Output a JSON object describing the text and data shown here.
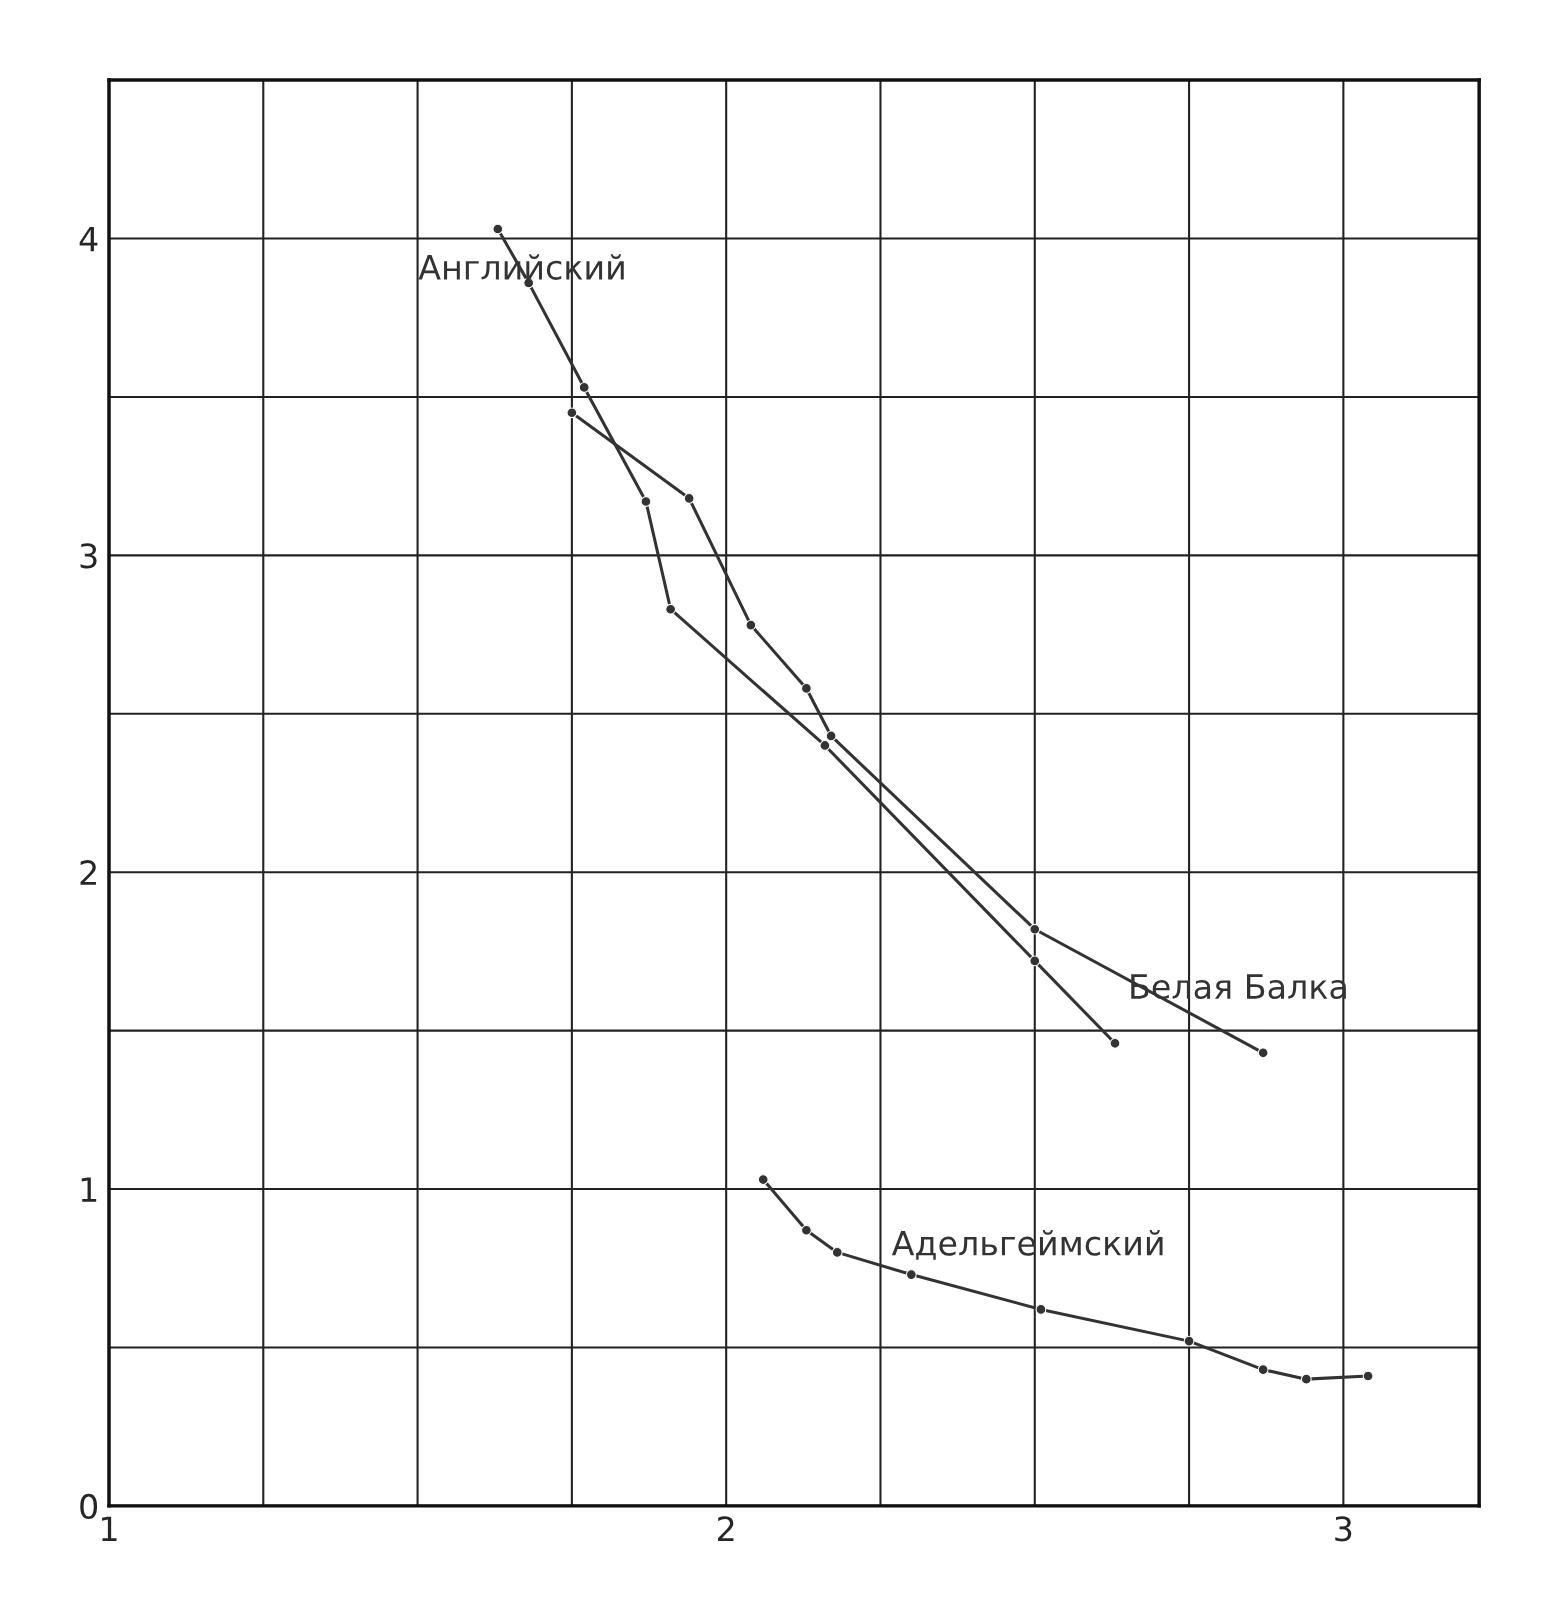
{
  "chart_data": {
    "type": "line",
    "xlim": [
      1,
      3.22
    ],
    "ylim": [
      0,
      4.5
    ],
    "xticks": [
      1,
      {
        "value": 1.25,
        "label": null
      },
      {
        "value": 1.5,
        "label": null
      },
      {
        "value": 1.75,
        "label": null
      },
      2,
      {
        "value": 2.25,
        "label": null
      },
      {
        "value": 2.5,
        "label": null
      },
      {
        "value": 2.75,
        "label": null
      },
      3
    ],
    "yticks": [
      0,
      {
        "value": 0.5,
        "label": null
      },
      1,
      {
        "value": 1.5,
        "label": null
      },
      2,
      {
        "value": 2.5,
        "label": null
      },
      3,
      {
        "value": 3.5,
        "label": null
      },
      4
    ],
    "grid": true,
    "marker": "circle",
    "line_style": "solid",
    "series": [
      {
        "name": "Английский",
        "color": "#333333",
        "x": [
          1.63,
          1.68,
          1.77,
          1.87,
          1.91,
          2.16,
          2.5,
          2.63
        ],
        "values": [
          4.03,
          3.86,
          3.53,
          3.17,
          2.83,
          2.4,
          1.72,
          1.46
        ]
      },
      {
        "name": "Белая Балка",
        "color": "#333333",
        "x": [
          1.75,
          1.94,
          2.04,
          2.13,
          2.17,
          2.5,
          2.87
        ],
        "values": [
          3.45,
          3.18,
          2.78,
          2.58,
          2.43,
          1.82,
          1.43
        ]
      },
      {
        "name": "Адельгеймский",
        "color": "#333333",
        "x": [
          2.06,
          2.13,
          2.18,
          2.3,
          2.51,
          2.75,
          2.87,
          2.94,
          3.04
        ],
        "values": [
          1.03,
          0.87,
          0.8,
          0.73,
          0.62,
          0.52,
          0.43,
          0.4,
          0.41
        ]
      }
    ]
  }
}
